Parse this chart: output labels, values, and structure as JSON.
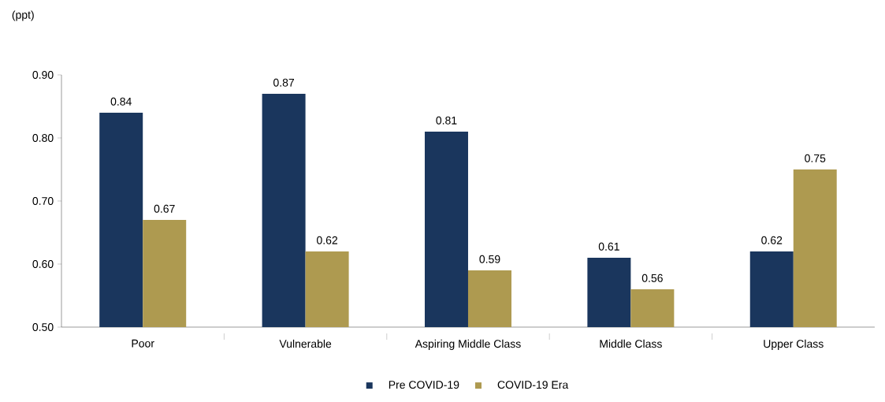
{
  "chart_data": {
    "type": "bar",
    "ylabel": "(ppt)",
    "categories": [
      "Poor",
      "Vulnerable",
      "Aspiring Middle Class",
      "Middle Class",
      "Upper Class"
    ],
    "series": [
      {
        "name": "Pre COVID-19",
        "color": "#1a365d",
        "values": [
          0.84,
          0.87,
          0.81,
          0.61,
          0.62
        ]
      },
      {
        "name": "COVID-19 Era",
        "color": "#ae9a50",
        "values": [
          0.67,
          0.62,
          0.59,
          0.56,
          0.75
        ]
      }
    ],
    "ylim": [
      0.5,
      0.9
    ],
    "yticks": [
      {
        "value": 0.5,
        "label": "0.50"
      },
      {
        "value": 0.6,
        "label": "0.60"
      },
      {
        "value": 0.7,
        "label": "0.70"
      },
      {
        "value": 0.8,
        "label": "0.80"
      },
      {
        "value": 0.9,
        "label": "0.90"
      }
    ],
    "data_labels": true,
    "grid": false,
    "legend": "bottom"
  }
}
